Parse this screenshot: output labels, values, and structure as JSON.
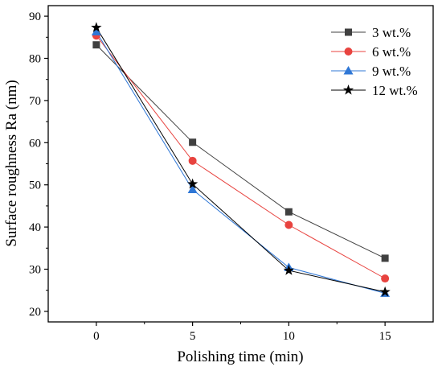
{
  "chart_data": {
    "type": "line",
    "xlabel": "Polishing time (min)",
    "ylabel": "Surface roughness Ra (nm)",
    "x": [
      0,
      5,
      10,
      15
    ],
    "xticks": [
      0,
      5,
      10,
      15
    ],
    "yticks": [
      20,
      30,
      40,
      50,
      60,
      70,
      80,
      90
    ],
    "xlim": [
      -2.5,
      17.5
    ],
    "ylim": [
      17.5,
      92.5
    ],
    "grid": false,
    "legend_position": "top-right",
    "series": [
      {
        "name": "3 wt.%",
        "values": [
          83.2,
          60.1,
          43.6,
          32.6
        ],
        "color": "#404040",
        "marker": "square"
      },
      {
        "name": "6 wt.%",
        "values": [
          85.4,
          55.7,
          40.5,
          27.8
        ],
        "color": "#e8433f",
        "marker": "circle"
      },
      {
        "name": "9 wt.%",
        "values": [
          86.3,
          48.9,
          30.4,
          24.3
        ],
        "color": "#2f77d6",
        "marker": "triangle"
      },
      {
        "name": "12 wt.%",
        "values": [
          87.3,
          50.2,
          29.7,
          24.6
        ],
        "color": "#000000",
        "marker": "star"
      }
    ]
  }
}
